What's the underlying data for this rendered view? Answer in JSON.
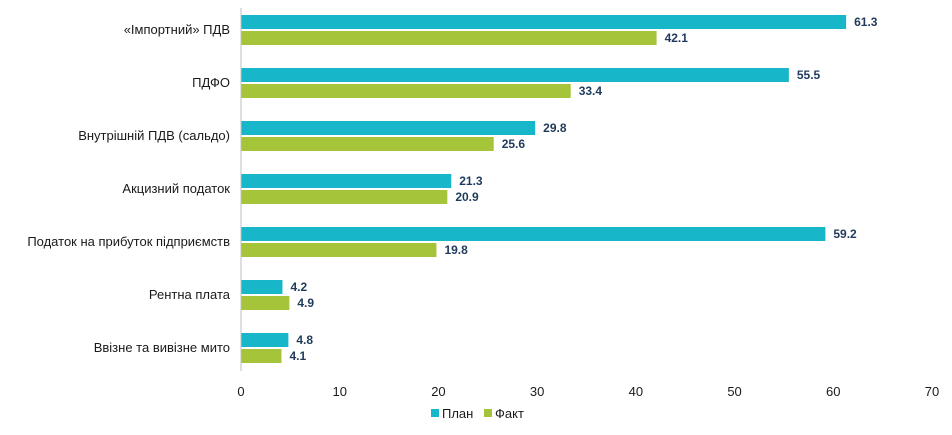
{
  "chart_data": {
    "type": "bar",
    "orientation": "horizontal",
    "categories": [
      "«Імпортний» ПДВ",
      "ПДФО",
      "Внутрішній ПДВ (сальдо)",
      "Акцизний податок",
      "Податок на прибуток підприємств",
      "Рентна плата",
      "Ввізне та вивізне мито"
    ],
    "series": [
      {
        "name": "План",
        "color": "#17b6c9",
        "values": [
          61.3,
          55.5,
          29.8,
          21.3,
          59.2,
          4.2,
          4.8
        ],
        "labels": [
          "61.3",
          "55.5",
          "29.8",
          "21.3",
          "59.2",
          "4.2",
          "4.8"
        ]
      },
      {
        "name": "Факт",
        "color": "#a5c43a",
        "values": [
          42.1,
          33.4,
          25.6,
          20.9,
          19.8,
          4.9,
          4.1
        ],
        "labels": [
          "42.1",
          "33.4",
          "25.6",
          "20.9",
          "19.8",
          "4.9",
          "4.1"
        ]
      }
    ],
    "xlim": [
      0,
      70
    ],
    "xticks": [
      "0",
      "10",
      "20",
      "30",
      "40",
      "50",
      "60",
      "70"
    ],
    "title": "",
    "xlabel": "",
    "ylabel": "",
    "grid": false,
    "legend_position": "bottom-center"
  }
}
